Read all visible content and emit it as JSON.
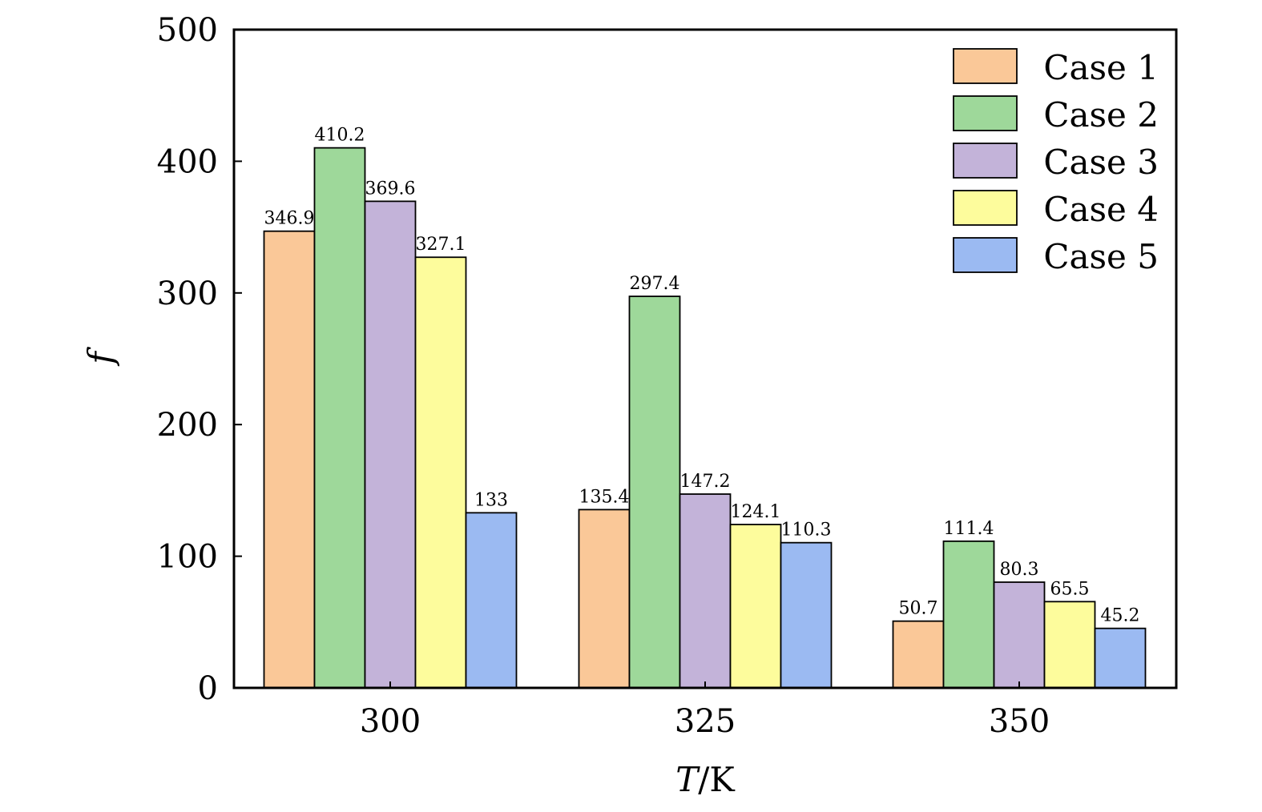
{
  "chart_data": {
    "type": "bar",
    "categories": [
      "300",
      "325",
      "350"
    ],
    "series": [
      {
        "name": "Case 1",
        "values": [
          346.9,
          135.4,
          50.7
        ],
        "labels": [
          "346.9",
          "135.4",
          "50.7"
        ],
        "color": "#fac898"
      },
      {
        "name": "Case 2",
        "values": [
          410.2,
          297.4,
          111.4
        ],
        "labels": [
          "410.2",
          "297.4",
          "111.4"
        ],
        "color": "#9ed89a"
      },
      {
        "name": "Case 3",
        "values": [
          369.6,
          147.2,
          80.3
        ],
        "labels": [
          "369.6",
          "147.2",
          "80.3"
        ],
        "color": "#c3b3d9"
      },
      {
        "name": "Case 4",
        "values": [
          327.1,
          124.1,
          65.5
        ],
        "labels": [
          "327.1",
          "124.1",
          "65.5"
        ],
        "color": "#fdfc9c"
      },
      {
        "name": "Case 5",
        "values": [
          133,
          110.3,
          45.2
        ],
        "labels": [
          "133",
          "110.3",
          "45.2"
        ],
        "color": "#9bbaf2"
      }
    ],
    "xlabel_italic": "T",
    "xlabel_unit": "/K",
    "ylabel": "f",
    "ylim": [
      0,
      500
    ],
    "yticks": [
      "0",
      "100",
      "200",
      "300",
      "400",
      "500"
    ],
    "grid": false,
    "legend": "top-right"
  }
}
